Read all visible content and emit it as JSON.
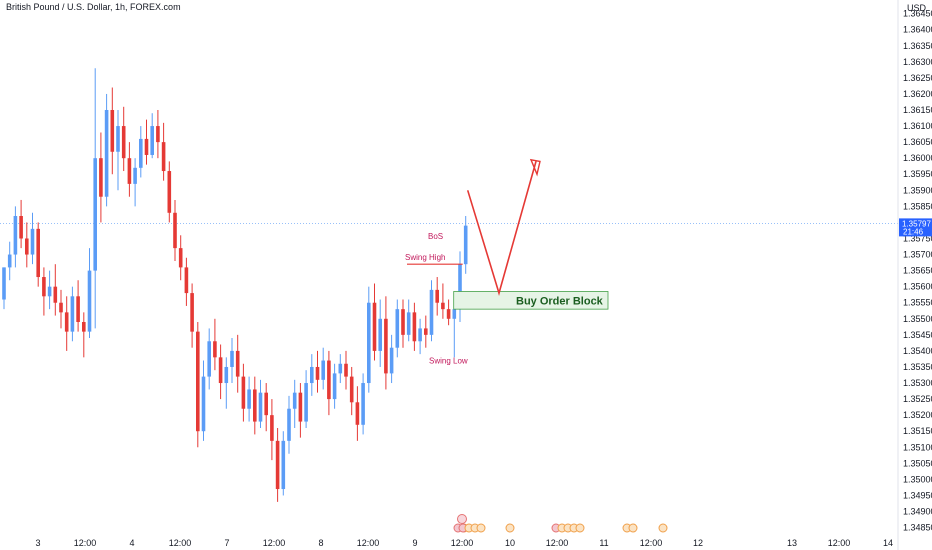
{
  "header": {
    "title": "British Pound / U.S. Dollar, 1h, FOREX.com",
    "currency": "USD"
  },
  "chart_data": {
    "type": "candlestick",
    "xlabel": "",
    "ylabel": "",
    "ylim": [
      1.3483,
      1.3648
    ],
    "y_ticks": [
      "1.36450",
      "1.36400",
      "1.36350",
      "1.36300",
      "1.36250",
      "1.36200",
      "1.36150",
      "1.36100",
      "1.36050",
      "1.36000",
      "1.35950",
      "1.35900",
      "1.35850",
      "1.35750",
      "1.35700",
      "1.35650",
      "1.35600",
      "1.35550",
      "1.35500",
      "1.35450",
      "1.35400",
      "1.35350",
      "1.35300",
      "1.35250",
      "1.35200",
      "1.35150",
      "1.35100",
      "1.35050",
      "1.35000",
      "1.34950",
      "1.34900",
      "1.34850"
    ],
    "x_ticks": [
      "3",
      "12:00",
      "4",
      "12:00",
      "7",
      "12:00",
      "8",
      "12:00",
      "9",
      "12:00",
      "10",
      "12:00",
      "11",
      "12:00",
      "12",
      "13",
      "12:00",
      "14"
    ],
    "current_price": {
      "value": "1.35797",
      "countdown": "21:46"
    },
    "candles": [
      [
        1.3556,
        1.3566,
        1.3553,
        1.3566
      ],
      [
        1.3566,
        1.3574,
        1.3562,
        1.357
      ],
      [
        1.357,
        1.3585,
        1.3566,
        1.3582
      ],
      [
        1.3582,
        1.3587,
        1.3572,
        1.3575
      ],
      [
        1.3575,
        1.358,
        1.3566,
        1.357
      ],
      [
        1.357,
        1.3583,
        1.3567,
        1.3578
      ],
      [
        1.3578,
        1.358,
        1.356,
        1.3563
      ],
      [
        1.3563,
        1.3566,
        1.3551,
        1.3557
      ],
      [
        1.3557,
        1.3565,
        1.3553,
        1.356
      ],
      [
        1.356,
        1.3567,
        1.3551,
        1.3555
      ],
      [
        1.3555,
        1.3559,
        1.3547,
        1.3552
      ],
      [
        1.3552,
        1.3557,
        1.354,
        1.3546
      ],
      [
        1.3546,
        1.356,
        1.3543,
        1.3557
      ],
      [
        1.3557,
        1.3562,
        1.3546,
        1.3549
      ],
      [
        1.3549,
        1.3552,
        1.3538,
        1.3546
      ],
      [
        1.3546,
        1.3572,
        1.3544,
        1.3565
      ],
      [
        1.3565,
        1.3628,
        1.3547,
        1.36
      ],
      [
        1.36,
        1.3608,
        1.358,
        1.3588
      ],
      [
        1.3588,
        1.362,
        1.3585,
        1.3615
      ],
      [
        1.3615,
        1.3622,
        1.3595,
        1.3602
      ],
      [
        1.3602,
        1.3615,
        1.359,
        1.361
      ],
      [
        1.361,
        1.3616,
        1.3596,
        1.36
      ],
      [
        1.36,
        1.3605,
        1.3588,
        1.3592
      ],
      [
        1.3592,
        1.36,
        1.3585,
        1.3597
      ],
      [
        1.3597,
        1.361,
        1.3594,
        1.3606
      ],
      [
        1.3606,
        1.3612,
        1.3598,
        1.3601
      ],
      [
        1.3601,
        1.3614,
        1.36,
        1.361
      ],
      [
        1.361,
        1.3615,
        1.36,
        1.3605
      ],
      [
        1.3605,
        1.3611,
        1.3593,
        1.3596
      ],
      [
        1.3596,
        1.3599,
        1.358,
        1.3583
      ],
      [
        1.3583,
        1.3587,
        1.3568,
        1.3572
      ],
      [
        1.3572,
        1.3576,
        1.3562,
        1.3566
      ],
      [
        1.3566,
        1.3569,
        1.3554,
        1.3558
      ],
      [
        1.3558,
        1.3561,
        1.3541,
        1.3546
      ],
      [
        1.3546,
        1.3549,
        1.351,
        1.3515
      ],
      [
        1.3515,
        1.3537,
        1.3512,
        1.3532
      ],
      [
        1.3532,
        1.3547,
        1.3528,
        1.3543
      ],
      [
        1.3543,
        1.355,
        1.3534,
        1.3538
      ],
      [
        1.3538,
        1.3542,
        1.3525,
        1.353
      ],
      [
        1.353,
        1.3538,
        1.3522,
        1.3535
      ],
      [
        1.3535,
        1.3544,
        1.353,
        1.354
      ],
      [
        1.354,
        1.3545,
        1.3527,
        1.3532
      ],
      [
        1.3532,
        1.3536,
        1.3518,
        1.3522
      ],
      [
        1.3522,
        1.3532,
        1.3518,
        1.3528
      ],
      [
        1.3528,
        1.3532,
        1.3514,
        1.3518
      ],
      [
        1.3518,
        1.3531,
        1.3516,
        1.3527
      ],
      [
        1.3527,
        1.353,
        1.3515,
        1.352
      ],
      [
        1.352,
        1.3525,
        1.3506,
        1.3512
      ],
      [
        1.3512,
        1.3516,
        1.3493,
        1.3497
      ],
      [
        1.3497,
        1.3515,
        1.3495,
        1.3512
      ],
      [
        1.3512,
        1.3526,
        1.3508,
        1.3522
      ],
      [
        1.3522,
        1.3531,
        1.3516,
        1.3527
      ],
      [
        1.3527,
        1.353,
        1.3513,
        1.3518
      ],
      [
        1.3518,
        1.3534,
        1.3516,
        1.353
      ],
      [
        1.353,
        1.3539,
        1.3526,
        1.3535
      ],
      [
        1.3535,
        1.354,
        1.3527,
        1.3531
      ],
      [
        1.3531,
        1.3541,
        1.3528,
        1.3537
      ],
      [
        1.3537,
        1.354,
        1.352,
        1.3525
      ],
      [
        1.3525,
        1.3536,
        1.3522,
        1.3533
      ],
      [
        1.3533,
        1.3539,
        1.353,
        1.3536
      ],
      [
        1.3536,
        1.354,
        1.3528,
        1.3532
      ],
      [
        1.3532,
        1.3535,
        1.352,
        1.3524
      ],
      [
        1.3524,
        1.3529,
        1.3512,
        1.3517
      ],
      [
        1.3517,
        1.3533,
        1.3514,
        1.353
      ],
      [
        1.353,
        1.356,
        1.3527,
        1.3555
      ],
      [
        1.3555,
        1.3561,
        1.3537,
        1.354
      ],
      [
        1.354,
        1.3556,
        1.3535,
        1.355
      ],
      [
        1.355,
        1.3557,
        1.3528,
        1.3533
      ],
      [
        1.3533,
        1.3545,
        1.353,
        1.3541
      ],
      [
        1.3541,
        1.3556,
        1.3538,
        1.3553
      ],
      [
        1.3553,
        1.3556,
        1.3541,
        1.3545
      ],
      [
        1.3545,
        1.3556,
        1.3543,
        1.3552
      ],
      [
        1.3552,
        1.3555,
        1.354,
        1.3543
      ],
      [
        1.3543,
        1.355,
        1.3539,
        1.3547
      ],
      [
        1.3547,
        1.3551,
        1.3541,
        1.3545
      ],
      [
        1.3545,
        1.3562,
        1.3543,
        1.3559
      ],
      [
        1.3559,
        1.3563,
        1.3551,
        1.3555
      ],
      [
        1.3555,
        1.3561,
        1.355,
        1.3553
      ],
      [
        1.3553,
        1.3556,
        1.3548,
        1.355
      ],
      [
        1.355,
        1.3556,
        1.3538,
        1.3553
      ],
      [
        1.3553,
        1.3571,
        1.3549,
        1.3567
      ],
      [
        1.3567,
        1.3582,
        1.3564,
        1.3579
      ]
    ]
  },
  "annotations": {
    "bos": "BoS",
    "swing_high": "Swing High",
    "swing_low": "Swing Low",
    "order_block": "Buy Order Block"
  },
  "colors": {
    "bull": "#5b9cf6",
    "bear": "#e53935",
    "projection": "#e53935",
    "order_block_fill": "#e6f4e6",
    "order_block_border": "#43a047",
    "price_tag": "#2962ff"
  },
  "event_icons": [
    [
      "flag-uk",
      "flag-us"
    ],
    [
      "flag-uk",
      "flag-us",
      "flag-us",
      "flag-us"
    ],
    [
      "flag-us"
    ],
    [
      "flag-uk",
      "flag-us",
      "flag-us",
      "flag-us",
      "flag-us"
    ],
    [
      "flag-us",
      "flag-us"
    ],
    [
      "flag-us"
    ]
  ]
}
